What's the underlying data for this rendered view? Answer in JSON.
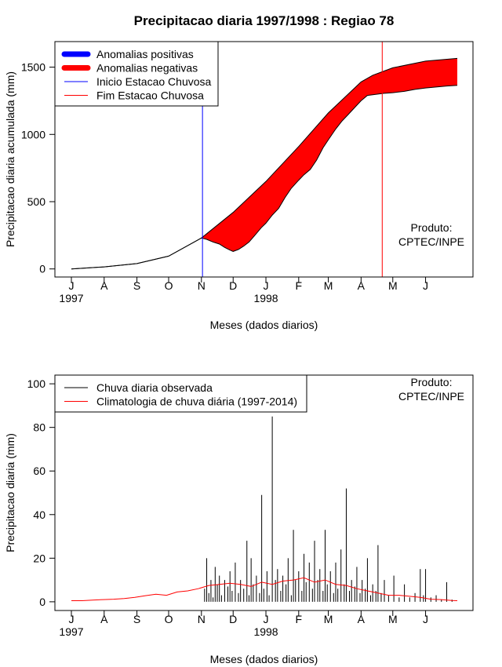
{
  "colors": {
    "positive": "#0000ff",
    "negative": "#ff0000",
    "start_line": "#0000ff",
    "end_line": "#ff0000",
    "observed": "#000000",
    "climatology": "#ff0000"
  },
  "chart_data": [
    {
      "type": "area",
      "title": "Precipitacao diaria 1997/1998 : Regiao 78",
      "ylabel": "Precipitacao diaria acumulada (mm)",
      "xlabel": "Meses (dados diarios)",
      "x_domain": [
        0,
        365
      ],
      "ylim": [
        -60,
        1690
      ],
      "y_ticks": [
        0,
        500,
        1000,
        1500
      ],
      "month_ticks": [
        {
          "day": 0,
          "label": "J"
        },
        {
          "day": 31,
          "label": "A"
        },
        {
          "day": 62,
          "label": "S"
        },
        {
          "day": 92,
          "label": "O"
        },
        {
          "day": 123,
          "label": "N"
        },
        {
          "day": 153,
          "label": "D"
        },
        {
          "day": 184,
          "label": "J"
        },
        {
          "day": 215,
          "label": "F"
        },
        {
          "day": 243,
          "label": "M"
        },
        {
          "day": 274,
          "label": "A"
        },
        {
          "day": 304,
          "label": "M"
        },
        {
          "day": 335,
          "label": "J"
        }
      ],
      "year_labels": [
        {
          "day": 0,
          "label": "1997"
        },
        {
          "day": 184,
          "label": "1998"
        }
      ],
      "legend": [
        {
          "label": "Anomalias positivas",
          "style": "thick",
          "color_key": "positive"
        },
        {
          "label": "Anomalias negativas",
          "style": "thick",
          "color_key": "negative"
        },
        {
          "label": "Inicio Estacao Chuvosa",
          "style": "thin",
          "color_key": "start_line"
        },
        {
          "label": "Fim Estacao Chuvosa",
          "style": "thin",
          "color_key": "end_line"
        }
      ],
      "legend_position": "top-left",
      "annotation": [
        "Produto:",
        "CPTEC/INPE"
      ],
      "annotation_position": "right",
      "start_rainy_season_day": 124,
      "end_rainy_season_day": 294,
      "climatology_cumulative": {
        "days": [
          0,
          31,
          62,
          92,
          123,
          153,
          184,
          215,
          243,
          274,
          285,
          304,
          335,
          365
        ],
        "values": [
          0,
          15,
          40,
          95,
          230,
          420,
          650,
          910,
          1160,
          1390,
          1440,
          1495,
          1545,
          1565
        ]
      },
      "observed_cumulative": {
        "days": [
          0,
          31,
          62,
          92,
          123,
          128,
          134,
          140,
          145,
          150,
          153,
          158,
          163,
          168,
          173,
          180,
          184,
          190,
          196,
          202,
          208,
          215,
          220,
          226,
          232,
          238,
          243,
          250,
          256,
          262,
          268,
          274,
          280,
          285,
          290,
          295,
          304,
          315,
          325,
          335,
          345,
          355,
          365
        ],
        "values": [
          0,
          15,
          40,
          95,
          230,
          220,
          200,
          185,
          160,
          140,
          130,
          145,
          170,
          200,
          245,
          310,
          340,
          400,
          450,
          530,
          600,
          660,
          700,
          740,
          810,
          900,
          960,
          1040,
          1100,
          1150,
          1200,
          1250,
          1290,
          1295,
          1300,
          1305,
          1310,
          1320,
          1335,
          1345,
          1352,
          1360,
          1365
        ]
      }
    },
    {
      "type": "line",
      "title": "",
      "ylabel": "Precipitacao diaria (mm)",
      "xlabel": "Meses (dados diarios)",
      "x_domain": [
        0,
        365
      ],
      "ylim": [
        -4,
        104
      ],
      "y_ticks": [
        0,
        20,
        40,
        60,
        80,
        100
      ],
      "month_ticks": [
        {
          "day": 0,
          "label": "J"
        },
        {
          "day": 31,
          "label": "A"
        },
        {
          "day": 62,
          "label": "S"
        },
        {
          "day": 92,
          "label": "O"
        },
        {
          "day": 123,
          "label": "N"
        },
        {
          "day": 153,
          "label": "D"
        },
        {
          "day": 184,
          "label": "J"
        },
        {
          "day": 215,
          "label": "F"
        },
        {
          "day": 243,
          "label": "M"
        },
        {
          "day": 274,
          "label": "A"
        },
        {
          "day": 304,
          "label": "M"
        },
        {
          "day": 335,
          "label": "J"
        }
      ],
      "year_labels": [
        {
          "day": 0,
          "label": "1997"
        },
        {
          "day": 184,
          "label": "1998"
        }
      ],
      "legend": [
        {
          "label": "Chuva diaria observada",
          "color_key": "observed"
        },
        {
          "label": "Climatologia de chuva diária (1997-2014)",
          "color_key": "climatology"
        }
      ],
      "legend_position": "top-left",
      "annotation": [
        "Produto:",
        "CPTEC/INPE"
      ],
      "annotation_position": "top-right",
      "series": [
        {
          "name": "Chuva diaria observada",
          "x": [
            0,
            126,
            128,
            130,
            132,
            134,
            136,
            138,
            140,
            142,
            145,
            148,
            150,
            152,
            155,
            158,
            160,
            163,
            166,
            168,
            170,
            172,
            175,
            178,
            180,
            182,
            185,
            187,
            190,
            193,
            195,
            198,
            200,
            203,
            205,
            208,
            210,
            212,
            215,
            218,
            220,
            222,
            225,
            228,
            230,
            233,
            235,
            238,
            240,
            242,
            245,
            248,
            250,
            252,
            255,
            258,
            260,
            263,
            265,
            268,
            270,
            273,
            275,
            278,
            280,
            283,
            285,
            288,
            290,
            293,
            296,
            300,
            305,
            310,
            315,
            320,
            325,
            330,
            333,
            335,
            340,
            345,
            350,
            355,
            360
          ],
          "values": [
            0,
            6,
            20,
            4,
            10,
            2,
            16,
            8,
            12,
            3,
            10,
            7,
            14,
            5,
            18,
            4,
            10,
            6,
            28,
            3,
            20,
            8,
            12,
            4,
            49,
            6,
            14,
            3,
            85,
            10,
            15,
            5,
            12,
            8,
            20,
            3,
            33,
            10,
            14,
            5,
            22,
            9,
            18,
            6,
            28,
            10,
            15,
            5,
            33,
            8,
            14,
            4,
            18,
            6,
            24,
            8,
            52,
            5,
            10,
            7,
            16,
            4,
            10,
            6,
            20,
            3,
            8,
            5,
            26,
            4,
            10,
            3,
            12,
            2,
            8,
            2,
            4,
            15,
            3,
            15,
            2,
            3,
            1,
            9,
            1
          ]
        },
        {
          "name": "Climatologia de chuva diária (1997-2014)",
          "x": [
            0,
            10,
            20,
            30,
            40,
            50,
            60,
            70,
            80,
            90,
            100,
            110,
            120,
            130,
            140,
            150,
            160,
            170,
            180,
            190,
            200,
            210,
            220,
            230,
            240,
            250,
            260,
            270,
            280,
            290,
            300,
            310,
            320,
            330,
            340,
            350,
            360,
            365
          ],
          "values": [
            0.5,
            0.5,
            0.8,
            1.0,
            1.2,
            1.5,
            2.0,
            2.8,
            3.5,
            3.0,
            4.5,
            5.0,
            6.0,
            7.5,
            8.0,
            8.5,
            8.0,
            7.0,
            9.0,
            8.0,
            9.5,
            10.0,
            11.0,
            9.0,
            10.0,
            8.0,
            7.5,
            6.0,
            5.0,
            4.0,
            3.0,
            3.0,
            2.5,
            2.0,
            1.2,
            1.0,
            0.6,
            0.5
          ]
        }
      ]
    }
  ]
}
